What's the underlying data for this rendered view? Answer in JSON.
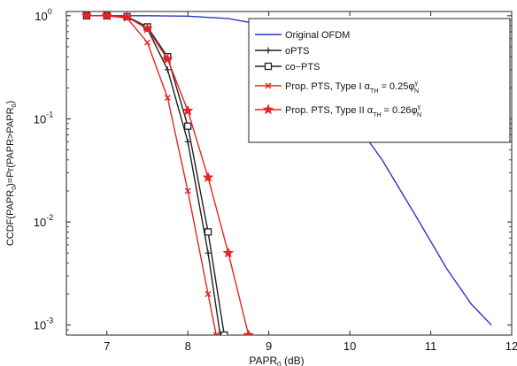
{
  "chart_data": {
    "type": "line",
    "title": "",
    "xlabel": "PAPR",
    "xlabel_sub": "0",
    "xlabel_unit": "(dB)",
    "ylabel": "CCDF(PAPR",
    "ylabel_sub": "0",
    "ylabel_mid": ")=Pr(PAPR>PAPR",
    "ylabel_tail": ")",
    "x_scale": "linear",
    "y_scale": "log",
    "xlim": [
      6.5,
      12
    ],
    "ylim": [
      0.0008,
      1.1
    ],
    "x_ticks": [
      7,
      8,
      9,
      10,
      11,
      12
    ],
    "x_tick_labels": [
      "7",
      "8",
      "9",
      "10",
      "11",
      "12"
    ],
    "y_ticks": [
      0.001,
      0.01,
      0.1,
      1
    ],
    "y_tick_labels": [
      {
        "base": "10",
        "exp": "-3"
      },
      {
        "base": "10",
        "exp": "-2"
      },
      {
        "base": "10",
        "exp": "-1"
      },
      {
        "base": "10",
        "exp": "0"
      }
    ],
    "grid": false,
    "legend_position": "top-right",
    "series": [
      {
        "name": "Original OFDM",
        "color": "#2b35c7",
        "marker": "none",
        "x": [
          6.75,
          7.5,
          8.0,
          8.5,
          8.8,
          9.0,
          9.3,
          9.6,
          10.0,
          10.4,
          10.8,
          11.2,
          11.5,
          11.75
        ],
        "y": [
          1.0,
          1.0,
          0.99,
          0.94,
          0.85,
          0.74,
          0.52,
          0.3,
          0.11,
          0.04,
          0.012,
          0.0035,
          0.0016,
          0.001
        ]
      },
      {
        "name": "oPTS",
        "color": "#202020",
        "marker": "plus",
        "x": [
          6.75,
          7.0,
          7.25,
          7.5,
          7.75,
          8.0,
          8.25,
          8.4
        ],
        "y": [
          1.0,
          1.0,
          0.98,
          0.75,
          0.3,
          0.06,
          0.005,
          0.0008
        ]
      },
      {
        "name": "co−PTS",
        "color": "#202020",
        "marker": "square",
        "x": [
          6.75,
          7.0,
          7.25,
          7.5,
          7.75,
          8.0,
          8.25,
          8.45
        ],
        "y": [
          1.0,
          1.0,
          0.98,
          0.78,
          0.4,
          0.085,
          0.008,
          0.0008
        ]
      },
      {
        "name": "Prop. PTS, Type I",
        "name_suffix": "α",
        "name_sub": "TH",
        "name_eq": " = 0.25φ",
        "name_supsub_sup": "γ",
        "name_supsub_sub": "N",
        "color": "#e82222",
        "marker": "x",
        "x": [
          6.75,
          7.0,
          7.25,
          7.5,
          7.75,
          8.0,
          8.25,
          8.35
        ],
        "y": [
          1.0,
          1.0,
          0.95,
          0.55,
          0.16,
          0.02,
          0.002,
          0.0008
        ]
      },
      {
        "name": "Prop. PTS, Type II",
        "name_suffix": "α",
        "name_sub": "TH",
        "name_eq": " = 0.26φ",
        "name_supsub_sup": "γ",
        "name_supsub_sub": "N",
        "color": "#e82222",
        "marker": "star",
        "x": [
          6.75,
          7.0,
          7.25,
          7.5,
          7.75,
          8.0,
          8.25,
          8.5,
          8.75
        ],
        "y": [
          1.0,
          1.0,
          0.97,
          0.75,
          0.38,
          0.12,
          0.027,
          0.005,
          0.0008
        ]
      }
    ]
  }
}
